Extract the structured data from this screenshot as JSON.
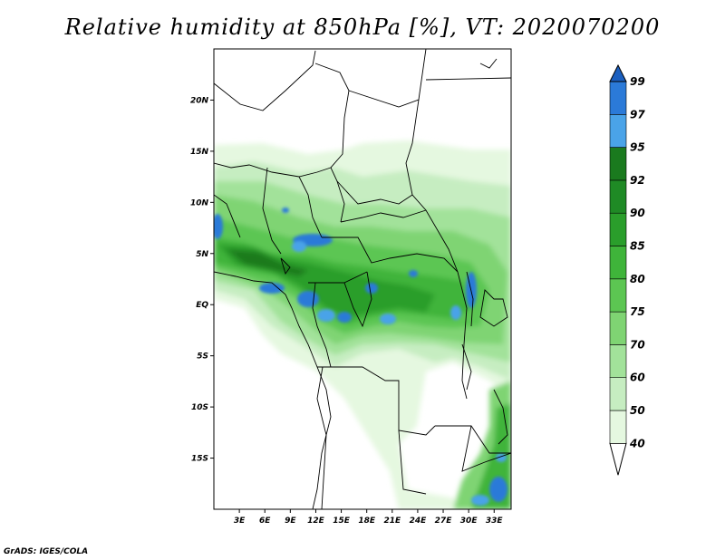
{
  "title": "Relative humidity at 850hPa [%], VT: 2020070200",
  "credit": "GrADS: IGES/COLA",
  "map": {
    "lon_range": [
      0,
      35
    ],
    "lat_range": [
      -20,
      25
    ],
    "lat_ticks": [
      {
        "value": 20,
        "label": "20N"
      },
      {
        "value": 15,
        "label": "15N"
      },
      {
        "value": 10,
        "label": "10N"
      },
      {
        "value": 5,
        "label": "5N"
      },
      {
        "value": 0,
        "label": "EQ"
      },
      {
        "value": -5,
        "label": "5S"
      },
      {
        "value": -10,
        "label": "10S"
      },
      {
        "value": -15,
        "label": "15S"
      }
    ],
    "lon_ticks": [
      {
        "value": 3,
        "label": "3E"
      },
      {
        "value": 6,
        "label": "6E"
      },
      {
        "value": 9,
        "label": "9E"
      },
      {
        "value": 12,
        "label": "12E"
      },
      {
        "value": 15,
        "label": "15E"
      },
      {
        "value": 18,
        "label": "18E"
      },
      {
        "value": 21,
        "label": "21E"
      },
      {
        "value": 24,
        "label": "24E"
      },
      {
        "value": 27,
        "label": "27E"
      },
      {
        "value": 30,
        "label": "30E"
      },
      {
        "value": 33,
        "label": "33E"
      }
    ]
  },
  "colorbar": {
    "labels": [
      "40",
      "50",
      "60",
      "70",
      "75",
      "80",
      "85",
      "90",
      "92",
      "95",
      "97",
      "99"
    ],
    "colors": [
      "#ffffff",
      "#e5f8e0",
      "#c6edc1",
      "#a2e29a",
      "#7fd473",
      "#5cc652",
      "#3fb43a",
      "#2a9e2b",
      "#1f8a25",
      "#1a7a1e",
      "#4aa3e8",
      "#2b7ad8",
      "#1b5fbf"
    ]
  }
}
